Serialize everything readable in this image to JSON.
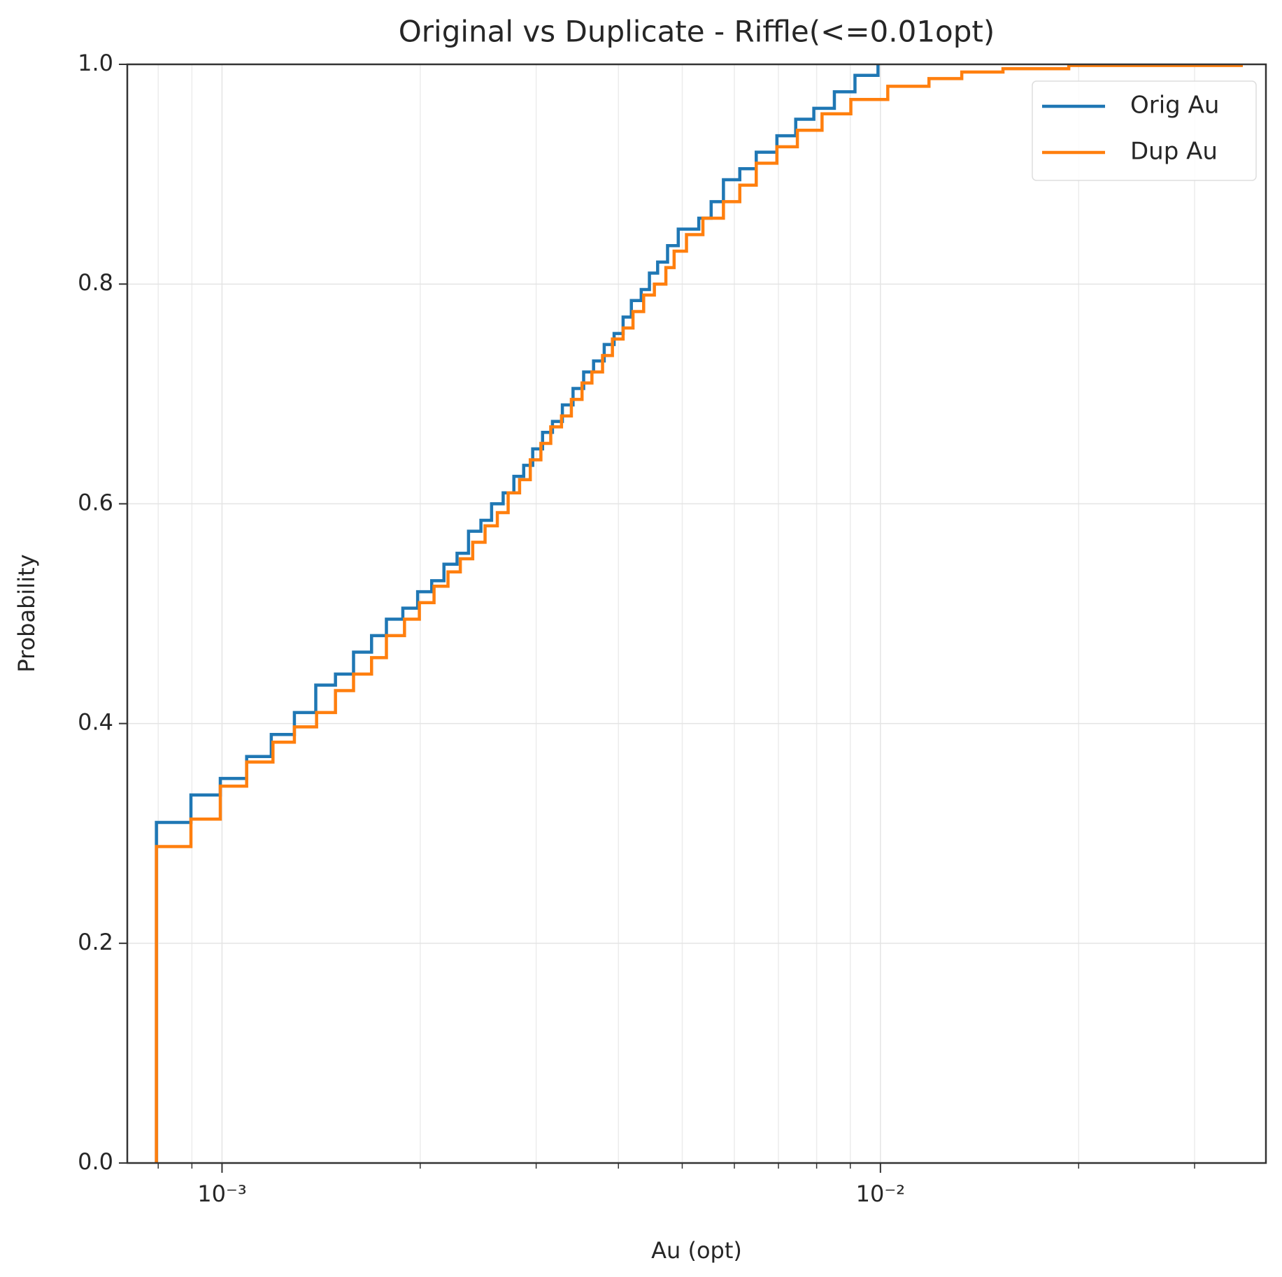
{
  "chart_data": {
    "type": "step",
    "step": "post",
    "title": "Original vs Duplicate - Riffle(<=0.01opt)",
    "x_label": "Au (opt)",
    "y_label": "Probability",
    "xscale": "log",
    "grid": true,
    "legend": "upper right",
    "xlim": [
      0.000718,
      0.0385
    ],
    "ylim": [
      0,
      1
    ],
    "xticks": [
      {
        "value": 0.001,
        "label": "10⁻³"
      },
      {
        "value": 0.01,
        "label": "10⁻²"
      }
    ],
    "xminor_ticks": [
      0.0008,
      0.0009,
      0.002,
      0.003,
      0.004,
      0.005,
      0.006,
      0.007,
      0.008,
      0.009,
      0.02,
      0.03
    ],
    "yticks": [
      {
        "value": 0,
        "label": "0.0"
      },
      0.2,
      0.4,
      0.6,
      0.8,
      {
        "value": 1,
        "label": "1.0"
      }
    ],
    "series": [
      {
        "name": "Orig Au",
        "color": "#1f77b4",
        "x": [
          0.000795,
          0.000795,
          0.000897,
          0.000994,
          0.00109,
          0.001188,
          0.001288,
          0.001388,
          0.001487,
          0.001584,
          0.001687,
          0.001777,
          0.001882,
          0.001982,
          0.002082,
          0.002173,
          0.002275,
          0.002368,
          0.002473,
          0.002567,
          0.002673,
          0.002775,
          0.002872,
          0.002964,
          0.003068,
          0.003176,
          0.003288,
          0.003413,
          0.003542,
          0.003667,
          0.003806,
          0.00394,
          0.004066,
          0.004185,
          0.004332,
          0.004458,
          0.004588,
          0.00475,
          0.004931,
          0.005298,
          0.005532,
          0.005775,
          0.006115,
          0.006477,
          0.006962,
          0.007436,
          0.007922,
          0.008512,
          0.009148,
          0.009915
        ],
        "values": [
          0,
          0.31,
          0.335,
          0.35,
          0.37,
          0.39,
          0.41,
          0.435,
          0.445,
          0.465,
          0.48,
          0.495,
          0.505,
          0.52,
          0.53,
          0.545,
          0.555,
          0.575,
          0.585,
          0.6,
          0.61,
          0.625,
          0.635,
          0.65,
          0.665,
          0.675,
          0.69,
          0.705,
          0.72,
          0.73,
          0.745,
          0.755,
          0.77,
          0.785,
          0.795,
          0.81,
          0.82,
          0.835,
          0.85,
          0.86,
          0.875,
          0.895,
          0.905,
          0.92,
          0.935,
          0.95,
          0.96,
          0.975,
          0.99,
          1
        ]
      },
      {
        "name": "Dup Au",
        "color": "#ff7f0e",
        "x": [
          0.000795,
          0.000795,
          0.000897,
          0.000994,
          0.00109,
          0.001195,
          0.001288,
          0.001392,
          0.001487,
          0.001584,
          0.001687,
          0.001777,
          0.001893,
          0.001994,
          0.002099,
          0.002204,
          0.002301,
          0.002403,
          0.002509,
          0.002619,
          0.00272,
          0.002831,
          0.002939,
          0.00305,
          0.003157,
          0.003278,
          0.003393,
          0.003522,
          0.003646,
          0.003784,
          0.003917,
          0.004066,
          0.004209,
          0.004369,
          0.004536,
          0.004722,
          0.00486,
          0.005075,
          0.005375,
          0.005775,
          0.006115,
          0.006477,
          0.006962,
          0.007479,
          0.008153,
          0.009017,
          0.01026,
          0.01185,
          0.01329,
          0.01535,
          0.01932,
          0.03532
        ],
        "values": [
          0,
          0.288,
          0.313,
          0.343,
          0.365,
          0.383,
          0.397,
          0.41,
          0.43,
          0.445,
          0.46,
          0.48,
          0.495,
          0.51,
          0.525,
          0.538,
          0.55,
          0.565,
          0.58,
          0.592,
          0.61,
          0.622,
          0.64,
          0.655,
          0.67,
          0.68,
          0.695,
          0.71,
          0.72,
          0.735,
          0.75,
          0.76,
          0.775,
          0.79,
          0.8,
          0.815,
          0.83,
          0.845,
          0.86,
          0.875,
          0.89,
          0.91,
          0.925,
          0.94,
          0.955,
          0.968,
          0.98,
          0.987,
          0.993,
          0.996,
          0.999,
          1
        ]
      }
    ]
  }
}
